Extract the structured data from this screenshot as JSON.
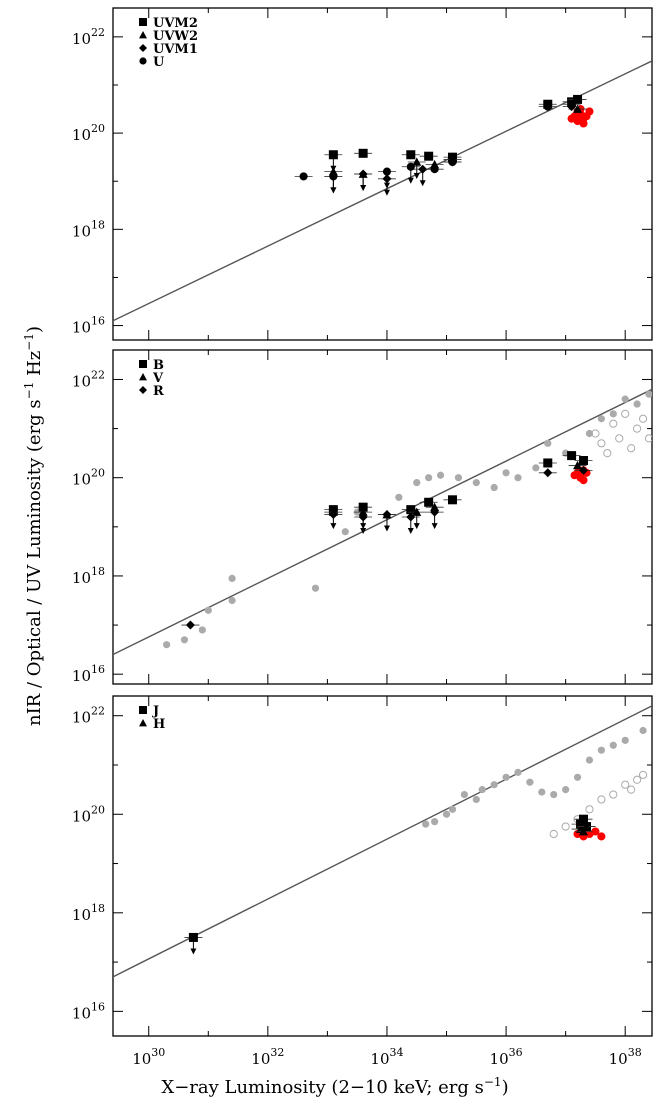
{
  "figure": {
    "xlabel_text": "X−ray Luminosity (2−10 keV; erg s",
    "xlabel_sup": "−1",
    "xlabel_end": ")",
    "ylabel_text": "nIR / Optical / UV Luminosity (erg s",
    "ylabel_sup1": "−1",
    "ylabel_mid": " Hz",
    "ylabel_sup2": "−1",
    "ylabel_end": ")"
  },
  "chart_data": [
    {
      "type": "scatter",
      "panel": "top",
      "xscale": "log",
      "yscale": "log",
      "xlim_log10": [
        29.4,
        38.45
      ],
      "ylim_log10": [
        15.7,
        22.6
      ],
      "x_tick_labels": [
        "1030",
        "1032",
        "1034",
        "1036",
        "1038"
      ],
      "y_tick_labels": [
        "1016",
        "1018",
        "1020",
        "1022"
      ],
      "y_ticks_log10": [
        16,
        18,
        20,
        22
      ],
      "legend": [
        "UVM2",
        "UVW2",
        "UVM1",
        "U"
      ],
      "legend_position": "top-left",
      "colors": {
        "detection": "#000000",
        "outburst": "#ff0000",
        "line": "#555555"
      },
      "fit_line": {
        "x_log10": [
          29.4,
          38.45
        ],
        "y_log10": [
          16.1,
          21.5
        ]
      },
      "series": [
        {
          "name": "UVM2",
          "marker": "square",
          "color": "#000000",
          "x_log10": [
            33.1,
            33.6,
            34.4,
            34.7,
            35.1,
            36.7,
            37.1,
            37.2
          ],
          "y_log10": [
            19.55,
            19.58,
            19.55,
            19.52,
            19.5,
            20.6,
            20.65,
            20.7
          ],
          "upper_limit": [
            true,
            false,
            false,
            false,
            false,
            false,
            false,
            false
          ]
        },
        {
          "name": "UVW2",
          "marker": "triangle",
          "color": "#000000",
          "x_log10": [
            33.1,
            33.6,
            34.5,
            34.8,
            35.1,
            37.2
          ],
          "y_log10": [
            19.2,
            19.15,
            19.4,
            19.35,
            19.45,
            20.5
          ],
          "upper_limit": [
            false,
            true,
            true,
            false,
            false,
            false
          ]
        },
        {
          "name": "UVM1",
          "marker": "diamond",
          "color": "#000000",
          "x_log10": [
            33.1,
            33.6,
            34.0,
            34.6,
            35.1,
            37.1
          ],
          "y_log10": [
            19.1,
            19.15,
            19.05,
            19.25,
            19.4,
            20.55
          ],
          "upper_limit": [
            true,
            true,
            true,
            true,
            false,
            false
          ]
        },
        {
          "name": "U",
          "marker": "circle",
          "color": "#000000",
          "x_log10": [
            32.6,
            33.1,
            34.0,
            34.4,
            34.8,
            35.1,
            36.7,
            37.1
          ],
          "y_log10": [
            19.1,
            19.1,
            19.2,
            19.3,
            19.25,
            19.4,
            20.55,
            20.6
          ],
          "upper_limit": [
            false,
            true,
            true,
            true,
            false,
            false,
            false,
            false
          ]
        },
        {
          "name": "",
          "marker": "circle",
          "color": "#ff0000",
          "x_log10": [
            37.1,
            37.15,
            37.2,
            37.25,
            37.3,
            37.35,
            37.2,
            37.25,
            37.4,
            37.3
          ],
          "y_log10": [
            20.3,
            20.35,
            20.25,
            20.4,
            20.3,
            20.35,
            20.45,
            20.5,
            20.45,
            20.2
          ]
        }
      ]
    },
    {
      "type": "scatter",
      "panel": "middle",
      "xscale": "log",
      "yscale": "log",
      "xlim_log10": [
        29.4,
        38.45
      ],
      "ylim_log10": [
        15.8,
        22.6
      ],
      "x_tick_labels": [
        "1030",
        "1032",
        "1034",
        "1036",
        "1038"
      ],
      "y_tick_labels": [
        "1016",
        "1018",
        "1020",
        "1022"
      ],
      "y_ticks_log10": [
        16,
        18,
        20,
        22
      ],
      "legend": [
        "B",
        "V",
        "R"
      ],
      "legend_position": "top-left",
      "colors": {
        "detection": "#000000",
        "outburst": "#ff0000",
        "comparison": "#aaaaaa",
        "line": "#555555"
      },
      "fit_line": {
        "x_log10": [
          29.4,
          38.45
        ],
        "y_log10": [
          16.4,
          21.8
        ]
      },
      "series": [
        {
          "name": "B",
          "marker": "square",
          "color": "#000000",
          "x_log10": [
            33.1,
            33.6,
            34.4,
            34.7,
            35.1,
            36.7,
            37.1,
            37.3
          ],
          "y_log10": [
            19.35,
            19.4,
            19.35,
            19.5,
            19.55,
            20.3,
            20.45,
            20.35
          ],
          "upper_limit": [
            false,
            false,
            false,
            false,
            false,
            false,
            false,
            false
          ]
        },
        {
          "name": "V",
          "marker": "triangle",
          "color": "#000000",
          "x_log10": [
            33.1,
            33.6,
            34.0,
            34.5,
            34.8,
            37.2
          ],
          "y_log10": [
            19.3,
            19.3,
            19.25,
            19.3,
            19.4,
            20.25
          ],
          "upper_limit": [
            true,
            true,
            true,
            true,
            false,
            false
          ]
        },
        {
          "name": "R",
          "marker": "diamond",
          "color": "#000000",
          "x_log10": [
            30.7,
            33.1,
            33.6,
            34.0,
            34.4,
            34.8,
            36.7,
            37.3
          ],
          "y_log10": [
            17.0,
            19.25,
            19.2,
            19.25,
            19.2,
            19.3,
            20.1,
            20.15
          ],
          "upper_limit": [
            false,
            false,
            true,
            false,
            true,
            true,
            false,
            false
          ]
        },
        {
          "name": "",
          "marker": "circle",
          "color": "#ff0000",
          "x_log10": [
            37.15,
            37.2,
            37.25,
            37.3,
            37.35,
            37.3
          ],
          "y_log10": [
            20.05,
            20.1,
            20.0,
            20.15,
            20.1,
            19.95
          ]
        },
        {
          "name": "",
          "marker": "circle",
          "color": "#aaaaaa",
          "x_log10": [
            30.3,
            30.6,
            30.9,
            31.0,
            31.4,
            31.4,
            32.8,
            33.3,
            33.5,
            34.2,
            34.5,
            34.7,
            34.9,
            35.2,
            35.5,
            35.8,
            36.0,
            36.2,
            36.5,
            36.7,
            37.0,
            37.4,
            37.6,
            37.8,
            38.0,
            38.2,
            38.4
          ],
          "y_log10": [
            16.6,
            16.7,
            16.9,
            17.3,
            17.5,
            17.95,
            17.75,
            18.9,
            19.3,
            19.6,
            19.9,
            20.0,
            20.05,
            20.0,
            19.9,
            19.8,
            20.1,
            20.0,
            20.2,
            20.7,
            20.5,
            20.9,
            21.2,
            21.3,
            21.6,
            21.5,
            21.7
          ]
        },
        {
          "name": "",
          "marker": "open-circle",
          "color": "#aaaaaa",
          "x_log10": [
            37.5,
            37.6,
            37.7,
            37.8,
            37.9,
            38.0,
            38.1,
            38.2,
            38.3,
            38.4
          ],
          "y_log10": [
            20.9,
            20.7,
            20.5,
            21.1,
            20.8,
            21.3,
            20.6,
            21.0,
            21.2,
            20.8
          ]
        }
      ]
    },
    {
      "type": "scatter",
      "panel": "bottom",
      "xscale": "log",
      "yscale": "log",
      "xlim_log10": [
        29.4,
        38.45
      ],
      "ylim_log10": [
        15.5,
        22.4
      ],
      "x_tick_labels": [
        "1030",
        "1032",
        "1034",
        "1036",
        "1038"
      ],
      "y_tick_labels": [
        "1016",
        "1018",
        "1020",
        "1022"
      ],
      "y_ticks_log10": [
        16,
        18,
        20,
        22
      ],
      "legend": [
        "J",
        "H"
      ],
      "legend_position": "top-left",
      "colors": {
        "detection": "#000000",
        "outburst": "#ff0000",
        "comparison": "#aaaaaa",
        "line": "#555555"
      },
      "fit_line": {
        "x_log10": [
          29.4,
          38.45
        ],
        "y_log10": [
          16.7,
          22.2
        ]
      },
      "series": [
        {
          "name": "J",
          "marker": "square",
          "color": "#000000",
          "x_log10": [
            30.75,
            37.25,
            37.3,
            37.35
          ],
          "y_log10": [
            17.5,
            19.8,
            19.9,
            19.75
          ],
          "upper_limit": [
            true,
            false,
            false,
            false
          ]
        },
        {
          "name": "H",
          "marker": "triangle",
          "color": "#000000",
          "x_log10": [
            37.25,
            37.3,
            37.35
          ],
          "y_log10": [
            19.7,
            19.65,
            19.75
          ],
          "upper_limit": [
            false,
            false,
            false
          ]
        },
        {
          "name": "",
          "marker": "circle",
          "color": "#ff0000",
          "x_log10": [
            37.2,
            37.3,
            37.4,
            37.5,
            37.6
          ],
          "y_log10": [
            19.6,
            19.55,
            19.6,
            19.65,
            19.55
          ]
        },
        {
          "name": "",
          "marker": "circle",
          "color": "#aaaaaa",
          "x_log10": [
            34.65,
            34.8,
            35.0,
            35.1,
            35.3,
            35.5,
            35.6,
            35.8,
            36.0,
            36.2,
            36.4,
            36.6,
            36.8,
            37.0,
            37.2,
            37.4,
            37.6,
            37.8,
            38.0,
            38.3
          ],
          "y_log10": [
            19.8,
            19.85,
            20.0,
            20.1,
            20.4,
            20.3,
            20.5,
            20.6,
            20.75,
            20.85,
            20.65,
            20.45,
            20.4,
            20.5,
            20.75,
            21.1,
            21.3,
            21.4,
            21.5,
            21.7
          ]
        },
        {
          "name": "",
          "marker": "open-circle",
          "color": "#aaaaaa",
          "x_log10": [
            36.8,
            37.0,
            37.2,
            37.4,
            37.6,
            37.8,
            38.0,
            38.1,
            38.2,
            38.3
          ],
          "y_log10": [
            19.6,
            19.75,
            19.9,
            20.1,
            20.3,
            20.4,
            20.6,
            20.5,
            20.7,
            20.8
          ]
        }
      ]
    }
  ]
}
